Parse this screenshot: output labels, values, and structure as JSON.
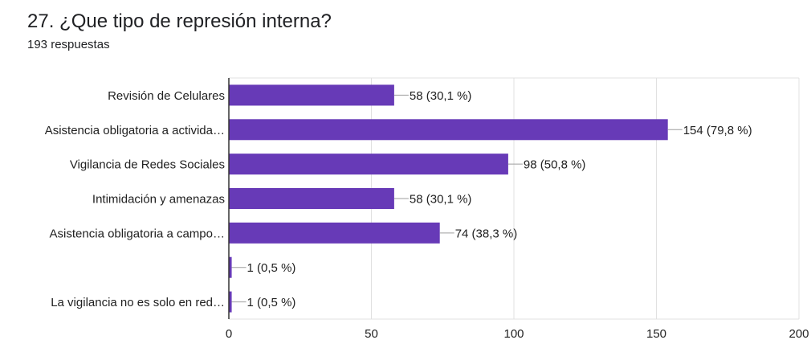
{
  "header": {
    "title": "27. ¿Que tipo de represión interna?",
    "responses": "193 respuestas"
  },
  "colors": {
    "bar": "#673ab7",
    "grid": "#e0e0e0",
    "axis": "#333333",
    "text": "#212121"
  },
  "chart_data": {
    "type": "bar",
    "orientation": "horizontal",
    "title": "27. ¿Que tipo de represión interna?",
    "subtitle": "193 respuestas",
    "categories": [
      "Revisión de Celulares",
      "Asistencia obligatoria a activida…",
      "Vigilancia de Redes Sociales",
      "Intimidación y amenazas",
      "Asistencia obligatoria a campo…",
      "",
      "La vigilancia no es solo en red…"
    ],
    "values": [
      58,
      154,
      98,
      58,
      74,
      1,
      1
    ],
    "value_labels": [
      "58 (30,1 %)",
      "154 (79,8 %)",
      "98 (50,8 %)",
      "58 (30,1 %)",
      "74 (38,3 %)",
      "1 (0,5 %)",
      "1 (0,5 %)"
    ],
    "xlim": [
      0,
      200
    ],
    "xticks": [
      0,
      50,
      100,
      150,
      200
    ],
    "xtick_labels": [
      "0",
      "50",
      "100",
      "150",
      "200"
    ],
    "grid": true
  }
}
